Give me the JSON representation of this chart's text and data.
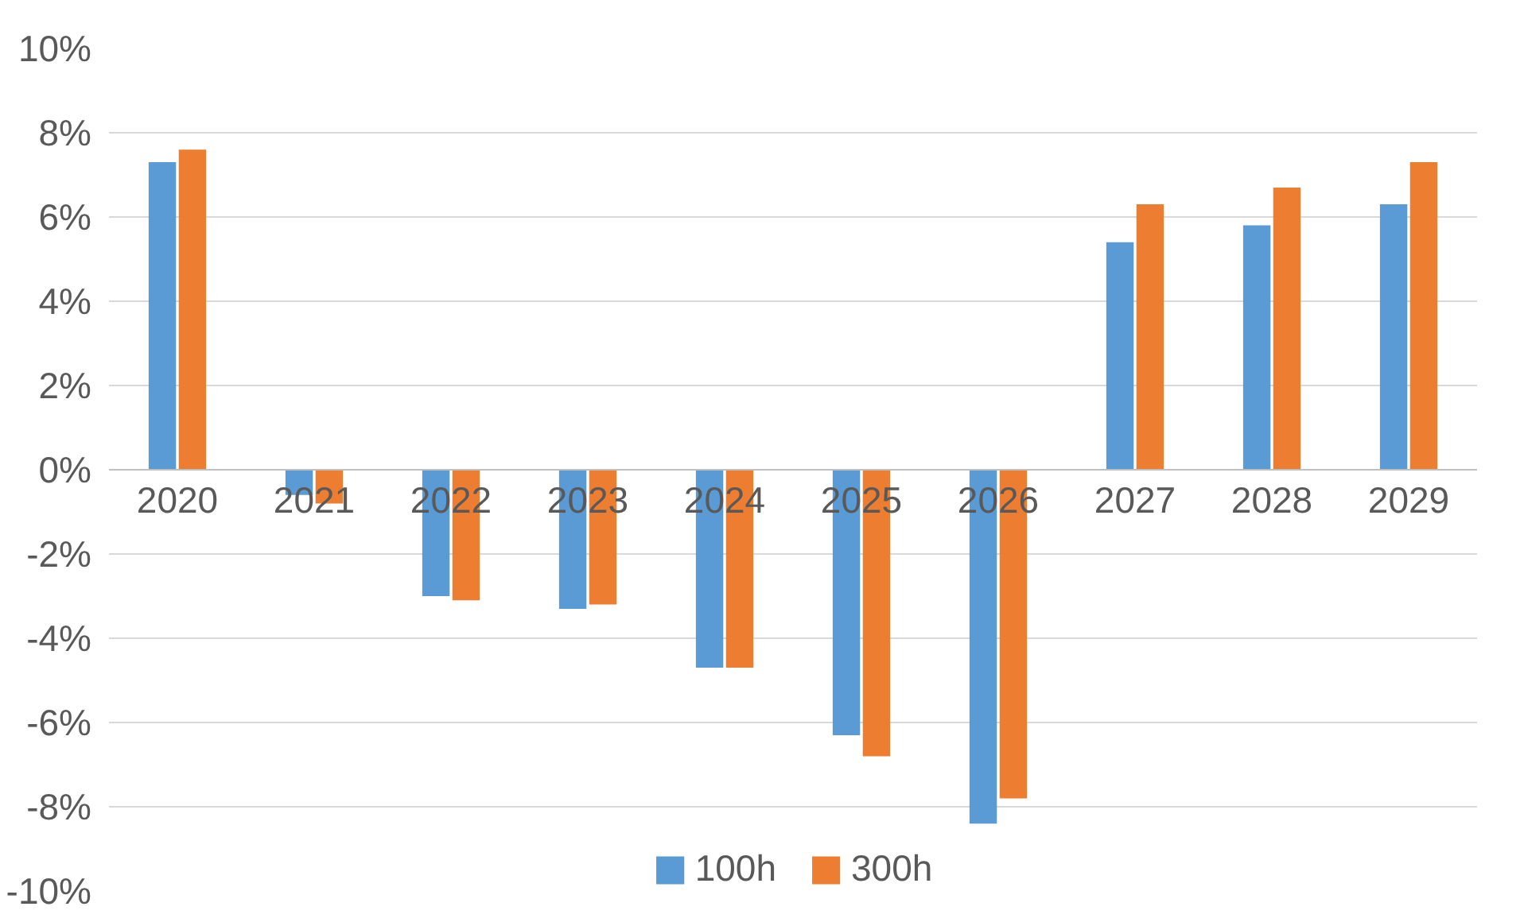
{
  "chart_data": {
    "type": "bar",
    "categories": [
      "2020",
      "2021",
      "2022",
      "2023",
      "2024",
      "2025",
      "2026",
      "2027",
      "2028",
      "2029"
    ],
    "series": [
      {
        "name": "100h",
        "color": "#5b9bd5",
        "values": [
          7.3,
          -0.6,
          -3.0,
          -3.3,
          -4.7,
          -6.3,
          -8.4,
          5.4,
          5.8,
          6.3
        ]
      },
      {
        "name": "300h",
        "color": "#ed7d31",
        "values": [
          7.6,
          -0.8,
          -3.1,
          -3.2,
          -4.7,
          -6.8,
          -7.8,
          6.3,
          6.7,
          7.3
        ]
      }
    ],
    "ylim": [
      -10,
      10
    ],
    "yticks": [
      {
        "value": -10,
        "label": "-10%"
      },
      {
        "value": -8,
        "label": "-8%"
      },
      {
        "value": -6,
        "label": "-6%"
      },
      {
        "value": -4,
        "label": "-4%"
      },
      {
        "value": -2,
        "label": "-2%"
      },
      {
        "value": 0,
        "label": "0%"
      },
      {
        "value": 2,
        "label": "2%"
      },
      {
        "value": 4,
        "label": "4%"
      },
      {
        "value": 6,
        "label": "6%"
      },
      {
        "value": 8,
        "label": "8%"
      },
      {
        "value": 10,
        "label": "10%"
      }
    ],
    "grid": "y",
    "legend": "bottom"
  }
}
